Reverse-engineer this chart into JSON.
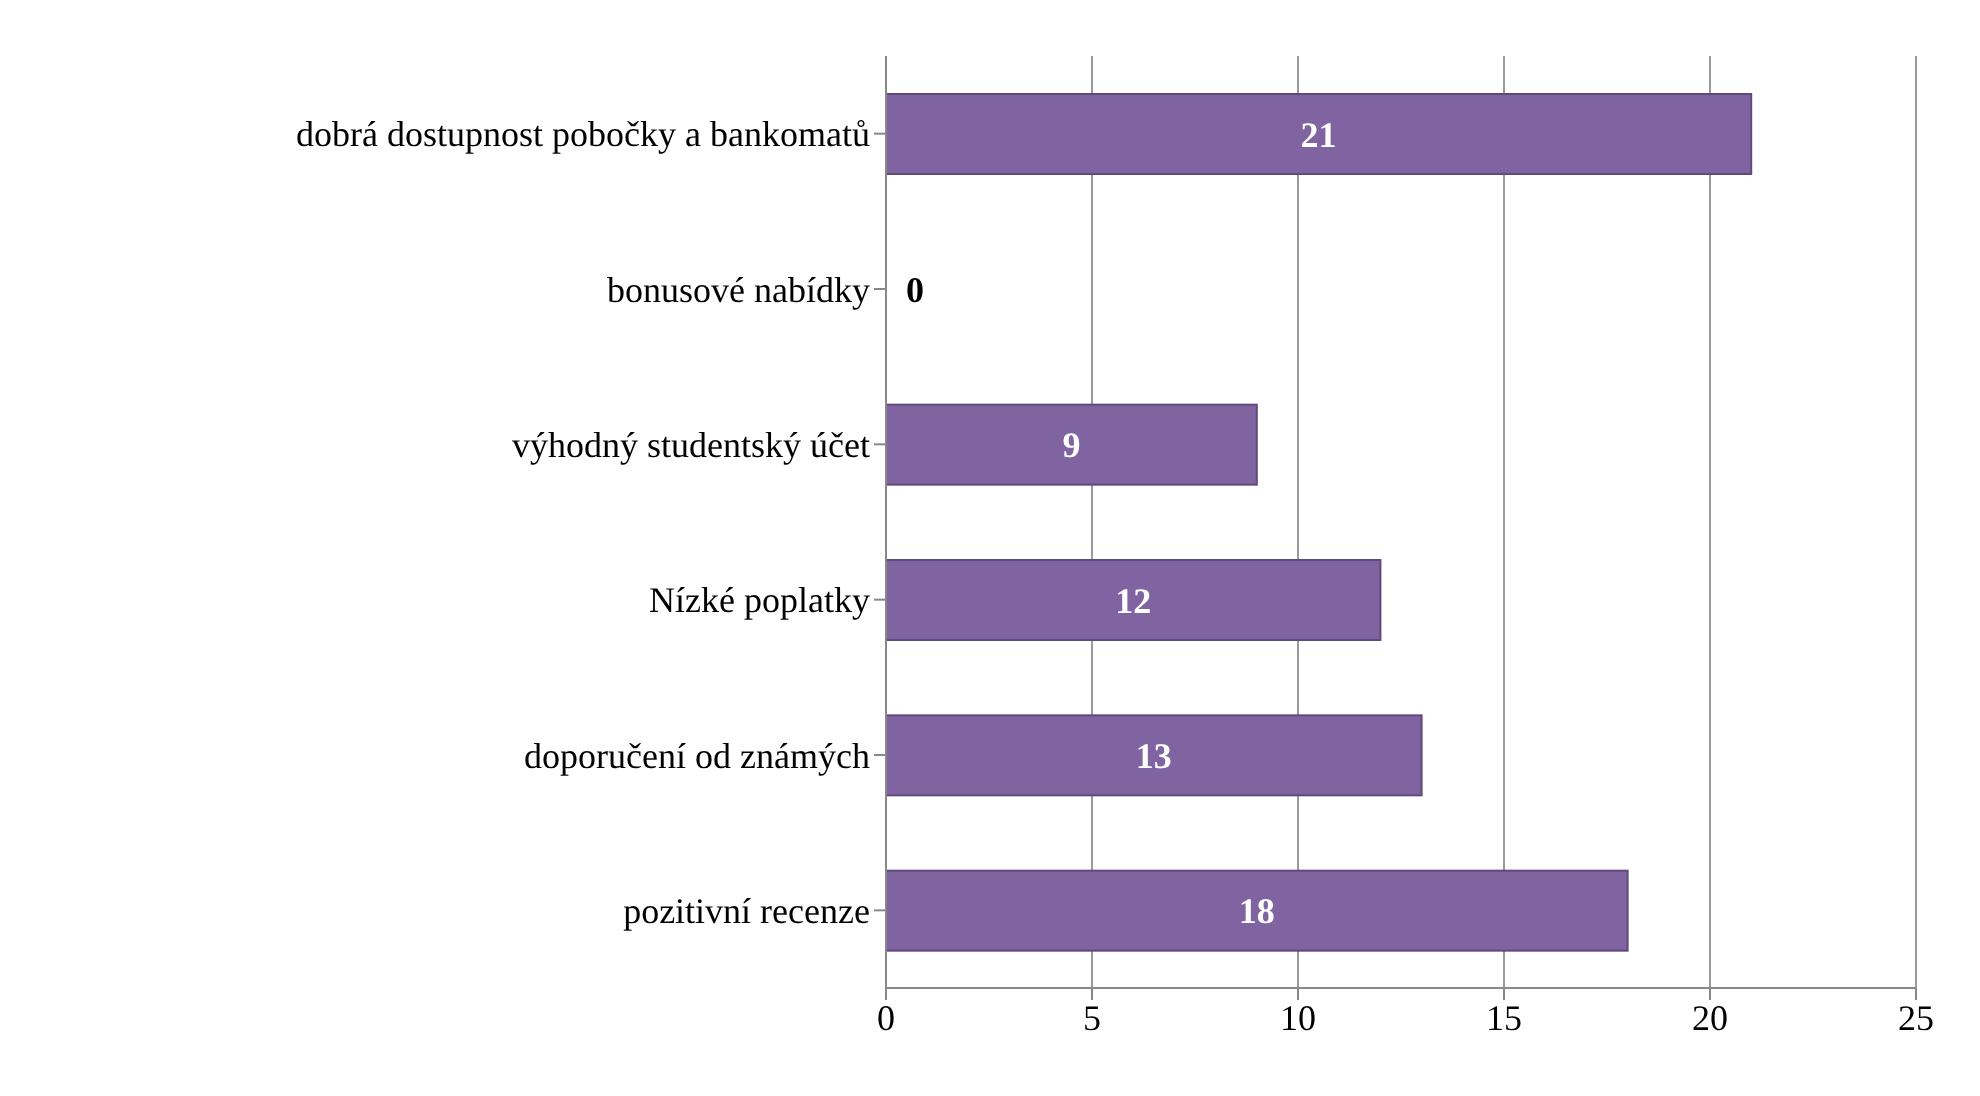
{
  "chart_data": {
    "type": "bar",
    "orientation": "horizontal",
    "categories": [
      "dobrá dostupnost pobočky a bankomatů",
      "bonusové nabídky",
      "výhodný studentský účet",
      "Nízké poplatky",
      "doporučení od známých",
      "pozitivní recenze"
    ],
    "values": [
      21,
      0,
      9,
      12,
      13,
      18
    ],
    "color": "#8064a2",
    "xlim": [
      0,
      25
    ],
    "xticks": [
      0,
      5,
      10,
      15,
      20,
      25
    ],
    "grid": "x",
    "data_labels": true
  }
}
